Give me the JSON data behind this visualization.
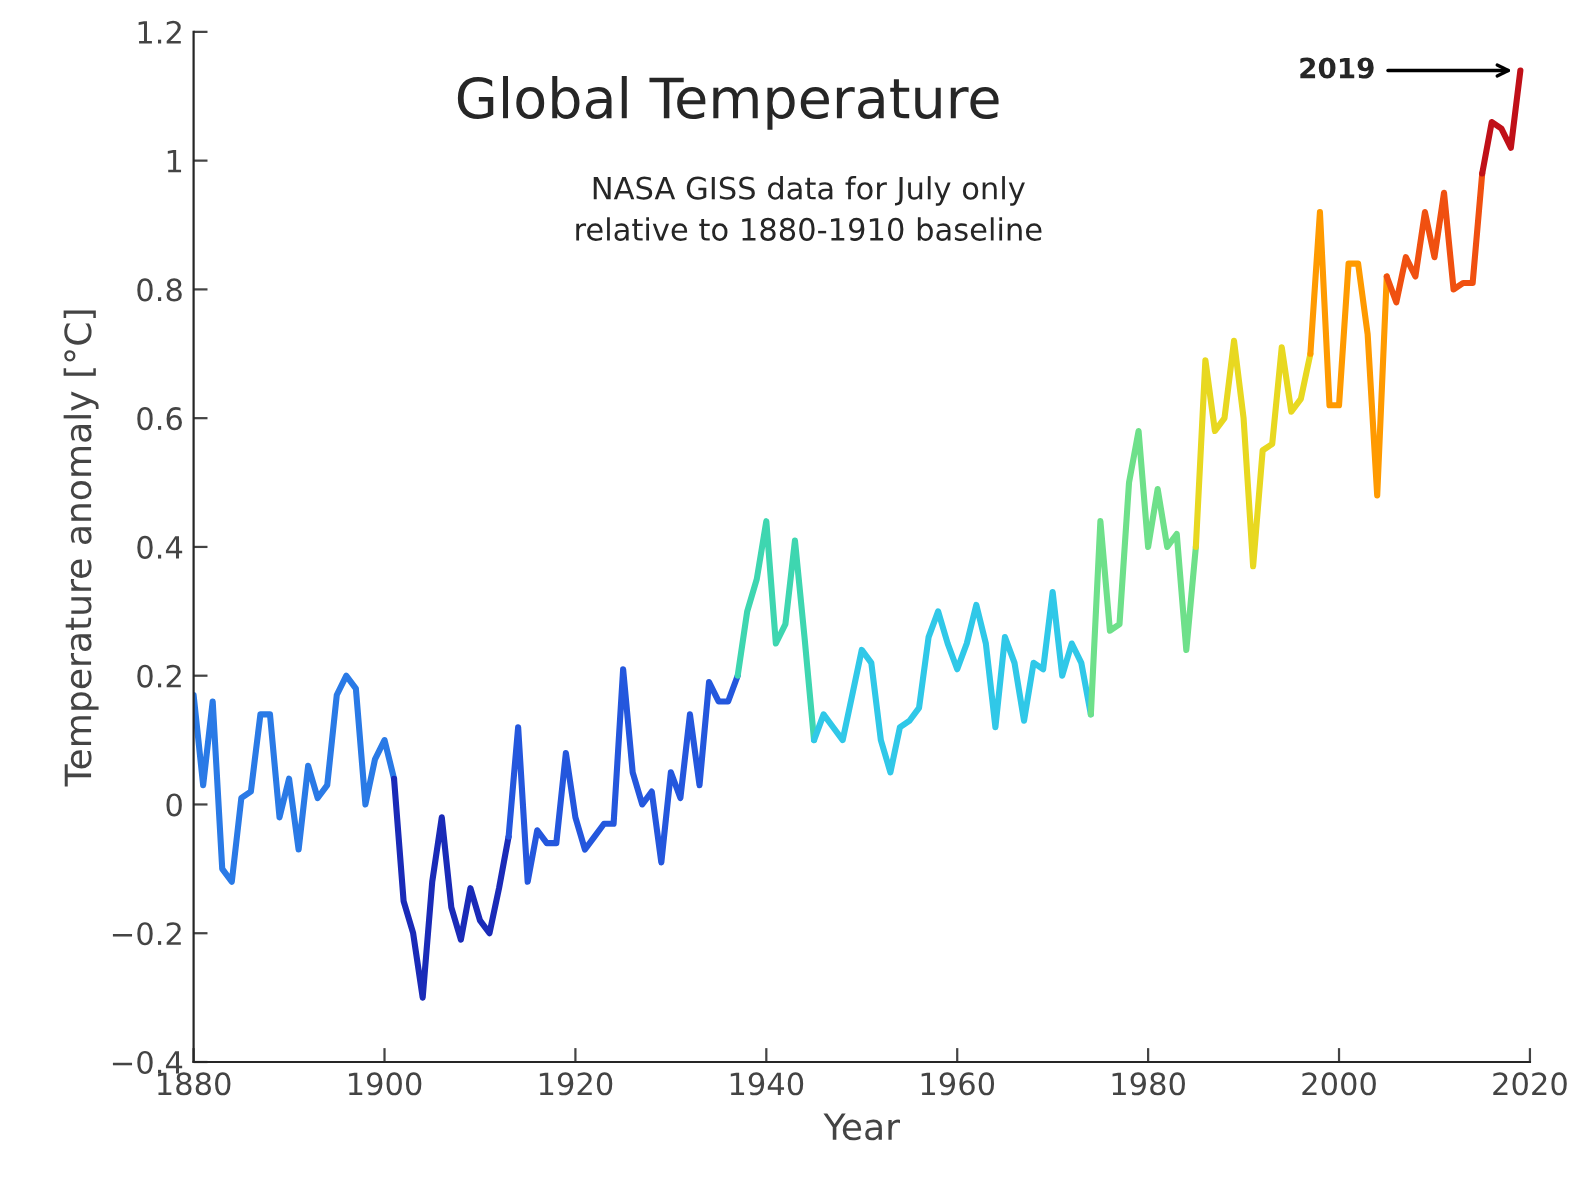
{
  "chart_data": {
    "type": "line",
    "title": "Global Temperature",
    "subtitle": "NASA GISS data for July only\nrelative to 1880-1910 baseline",
    "xlabel": "Year",
    "ylabel": "Temperature anomaly [°C]",
    "xlim": [
      1880,
      2020
    ],
    "xticks": [
      1880,
      1900,
      1920,
      1940,
      1960,
      1980,
      2000,
      2020
    ],
    "ylim": [
      -0.4,
      1.2
    ],
    "yticks": [
      -0.4,
      -0.2,
      0,
      0.2,
      0.4,
      0.6,
      0.8,
      1,
      1.2
    ],
    "grid": false,
    "marker": "none",
    "line_style": "solid",
    "annotations": [
      {
        "text": "2019",
        "x": 2019,
        "y": 1.14
      }
    ],
    "series": [
      {
        "color": "#2a7ae6",
        "x": [
          1880,
          1881,
          1882,
          1883,
          1884,
          1885,
          1886,
          1887,
          1888,
          1889,
          1890,
          1891,
          1892,
          1893,
          1894,
          1895,
          1896,
          1897,
          1898,
          1899,
          1900,
          1901
        ],
        "values": [
          0.17,
          0.03,
          0.16,
          -0.1,
          -0.12,
          0.01,
          0.02,
          0.14,
          0.14,
          -0.02,
          0.04,
          -0.07,
          0.06,
          0.01,
          0.03,
          0.17,
          0.2,
          0.18,
          0.0,
          0.07,
          0.1,
          0.04
        ]
      },
      {
        "color": "#1a2bb8",
        "x": [
          1901,
          1902,
          1903,
          1904,
          1905,
          1906,
          1907,
          1908,
          1909,
          1910,
          1911,
          1912,
          1913
        ],
        "values": [
          0.04,
          -0.15,
          -0.2,
          -0.3,
          -0.12,
          -0.02,
          -0.16,
          -0.21,
          -0.13,
          -0.18,
          -0.2,
          -0.13,
          -0.05
        ]
      },
      {
        "color": "#2457dd",
        "x": [
          1913,
          1914,
          1915,
          1916,
          1917,
          1918,
          1919,
          1920,
          1921,
          1922,
          1923,
          1924,
          1925,
          1926,
          1927,
          1928,
          1929,
          1930,
          1931,
          1932,
          1933,
          1934,
          1935,
          1936,
          1937
        ],
        "values": [
          -0.05,
          0.12,
          -0.12,
          -0.04,
          -0.06,
          -0.06,
          0.08,
          -0.02,
          -0.07,
          -0.05,
          -0.03,
          -0.03,
          0.21,
          0.05,
          0.0,
          0.02,
          -0.09,
          0.05,
          0.01,
          0.14,
          0.03,
          0.19,
          0.16,
          0.16,
          0.2
        ]
      },
      {
        "color": "#3ed6b0",
        "x": [
          1937,
          1938,
          1939,
          1940,
          1941,
          1942,
          1943,
          1944,
          1945
        ],
        "values": [
          0.2,
          0.3,
          0.35,
          0.44,
          0.25,
          0.28,
          0.41,
          0.26,
          0.1
        ]
      },
      {
        "color": "#30c8e8",
        "x": [
          1945,
          1946,
          1947,
          1948,
          1949,
          1950,
          1951,
          1952,
          1953,
          1954,
          1955,
          1956,
          1957,
          1958,
          1959,
          1960,
          1961,
          1962,
          1963,
          1964,
          1965,
          1966,
          1967,
          1968,
          1969,
          1970,
          1971,
          1972,
          1973,
          1974
        ],
        "values": [
          0.1,
          0.14,
          0.12,
          0.1,
          0.17,
          0.24,
          0.22,
          0.1,
          0.05,
          0.12,
          0.13,
          0.15,
          0.26,
          0.3,
          0.25,
          0.21,
          0.25,
          0.31,
          0.25,
          0.12,
          0.26,
          0.22,
          0.13,
          0.22,
          0.21,
          0.33,
          0.2,
          0.25,
          0.22,
          0.14
        ]
      },
      {
        "color": "#6ee08a",
        "x": [
          1974,
          1975,
          1976,
          1977,
          1978,
          1979,
          1980,
          1981,
          1982,
          1983,
          1984,
          1985
        ],
        "values": [
          0.14,
          0.44,
          0.27,
          0.28,
          0.5,
          0.58,
          0.4,
          0.49,
          0.4,
          0.42,
          0.24,
          0.4
        ]
      },
      {
        "color": "#e8d820",
        "x": [
          1985,
          1986,
          1987,
          1988,
          1989,
          1990,
          1991,
          1992,
          1993,
          1994,
          1995,
          1996,
          1997
        ],
        "values": [
          0.4,
          0.69,
          0.58,
          0.6,
          0.72,
          0.6,
          0.37,
          0.55,
          0.56,
          0.71,
          0.61,
          0.63,
          0.7
        ]
      },
      {
        "color": "#ff9a00",
        "x": [
          1997,
          1998,
          1999,
          2000,
          2001,
          2002,
          2003,
          2004,
          2005
        ],
        "values": [
          0.7,
          0.92,
          0.62,
          0.62,
          0.84,
          0.84,
          0.73,
          0.48,
          0.82
        ]
      },
      {
        "color": "#f05010",
        "x": [
          2005,
          2006,
          2007,
          2008,
          2009,
          2010,
          2011,
          2012,
          2013,
          2014,
          2015
        ],
        "values": [
          0.82,
          0.78,
          0.85,
          0.82,
          0.92,
          0.85,
          0.95,
          0.8,
          0.81,
          0.81,
          0.98
        ]
      },
      {
        "color": "#c01018",
        "x": [
          2015,
          2016,
          2017,
          2018,
          2019
        ],
        "values": [
          0.98,
          1.06,
          1.05,
          1.02,
          1.14
        ]
      }
    ]
  }
}
